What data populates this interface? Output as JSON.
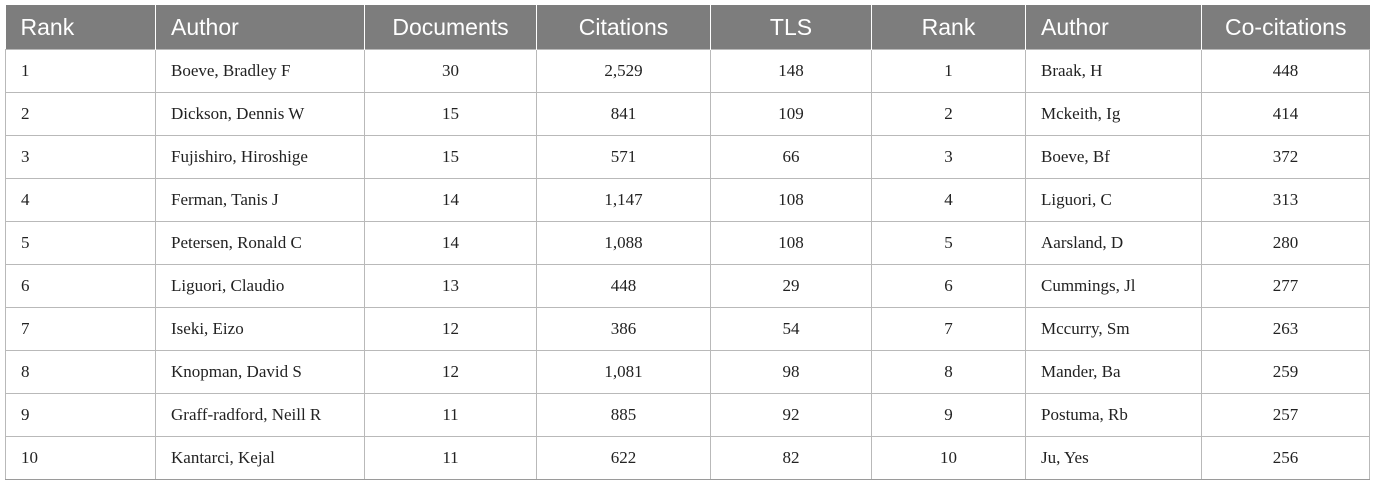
{
  "table": {
    "headers": [
      "Rank",
      "Author",
      "Documents",
      "Citations",
      "TLS",
      "Rank",
      "Author",
      "Co-citations"
    ],
    "rows": [
      [
        "1",
        "Boeve, Bradley F",
        "30",
        "2,529",
        "148",
        "1",
        "Braak, H",
        "448"
      ],
      [
        "2",
        "Dickson, Dennis W",
        "15",
        "841",
        "109",
        "2",
        "Mckeith, Ig",
        "414"
      ],
      [
        "3",
        "Fujishiro, Hiroshige",
        "15",
        "571",
        "66",
        "3",
        "Boeve, Bf",
        "372"
      ],
      [
        "4",
        "Ferman, Tanis J",
        "14",
        "1,147",
        "108",
        "4",
        "Liguori, C",
        "313"
      ],
      [
        "5",
        "Petersen, Ronald C",
        "14",
        "1,088",
        "108",
        "5",
        "Aarsland, D",
        "280"
      ],
      [
        "6",
        "Liguori, Claudio",
        "13",
        "448",
        "29",
        "6",
        "Cummings, Jl",
        "277"
      ],
      [
        "7",
        "Iseki, Eizo",
        "12",
        "386",
        "54",
        "7",
        "Mccurry, Sm",
        "263"
      ],
      [
        "8",
        "Knopman, David S",
        "12",
        "1,081",
        "98",
        "8",
        "Mander, Ba",
        "259"
      ],
      [
        "9",
        "Graff-radford, Neill R",
        "11",
        "885",
        "92",
        "9",
        "Postuma, Rb",
        "257"
      ],
      [
        "10",
        "Kantarci, Kejal",
        "11",
        "622",
        "82",
        "10",
        "Ju, Yes",
        "256"
      ]
    ]
  }
}
